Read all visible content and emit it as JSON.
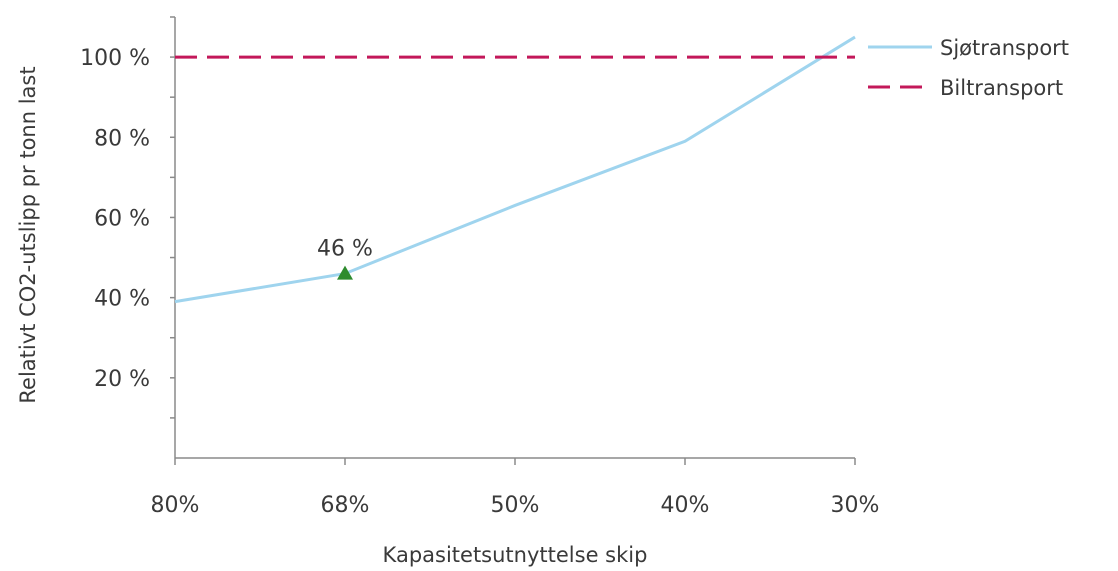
{
  "chart_data": {
    "type": "line",
    "categories": [
      "80%",
      "68%",
      "50%",
      "40%",
      "30%"
    ],
    "x": [
      80,
      68,
      50,
      40,
      30
    ],
    "series": [
      {
        "name": "Sjøtransport",
        "style": "solid",
        "color": "#9fd4ee",
        "points": [
          {
            "x": 80,
            "y": 39
          },
          {
            "x": 68,
            "y": 46
          },
          {
            "x": 50,
            "y": 63
          },
          {
            "x": 40,
            "y": 79
          },
          {
            "x": 30,
            "y": 105
          }
        ]
      },
      {
        "name": "Biltransport",
        "style": "dashed",
        "color": "#c3185a",
        "points": [
          {
            "x": 80,
            "y": 100
          },
          {
            "x": 30,
            "y": 100
          }
        ]
      }
    ],
    "annotation": {
      "x": 68,
      "y": 46,
      "label": "46 %",
      "marker": "triangle",
      "color": "#2e8b2e"
    },
    "y_ticks": [
      {
        "value": 20,
        "label": "20 %"
      },
      {
        "value": 40,
        "label": "40 %"
      },
      {
        "value": 60,
        "label": "60 %"
      },
      {
        "value": 80,
        "label": "80 %"
      },
      {
        "value": 100,
        "label": "100 %"
      }
    ],
    "ylim": [
      0,
      110
    ],
    "x_reversed": true,
    "xlabel": "Kapasitetsutnyttelse skip",
    "ylabel": "Relativt CO2-utslipp pr tonn last",
    "legend_position": "right-top",
    "grid": false
  }
}
